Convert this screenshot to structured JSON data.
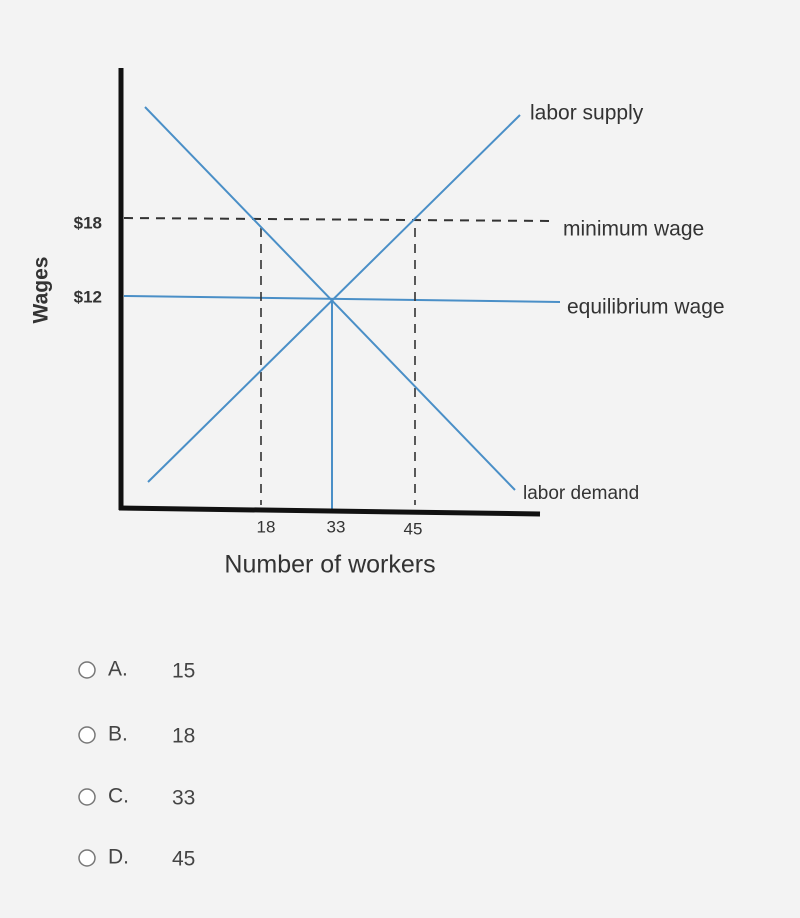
{
  "graph": {
    "y_axis_label": "Wages",
    "x_axis_label": "Number of workers",
    "y_ticks": [
      "$18",
      "$12"
    ],
    "x_ticks": [
      "18",
      "33",
      "45"
    ],
    "line_labels": {
      "supply": "labor supply",
      "minimum": "minimum wage",
      "equilibrium": "equilibrium wage",
      "demand": "labor demand"
    }
  },
  "choices": [
    {
      "letter": "A.",
      "text": "15"
    },
    {
      "letter": "B.",
      "text": "18"
    },
    {
      "letter": "C.",
      "text": "33"
    },
    {
      "letter": "D.",
      "text": "45"
    }
  ]
}
